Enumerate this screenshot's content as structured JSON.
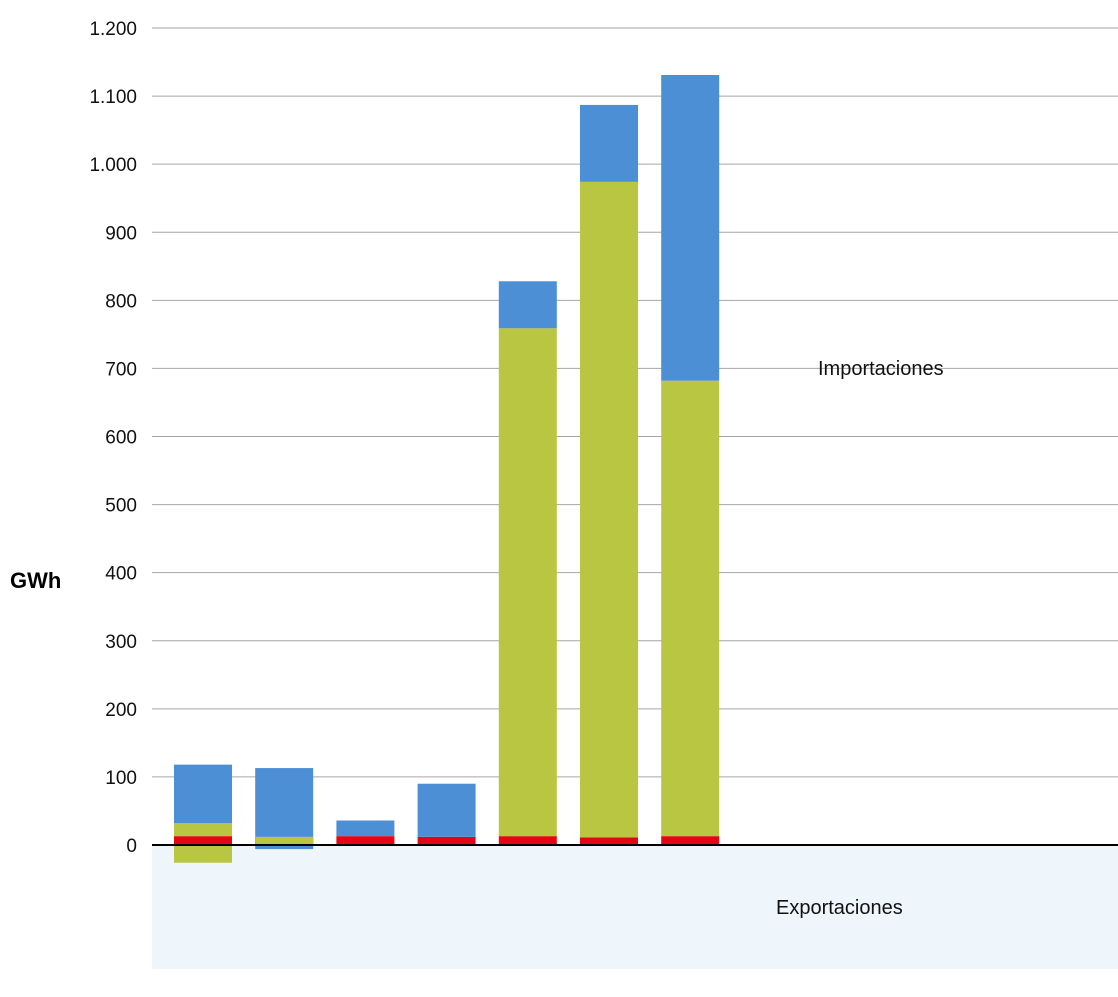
{
  "chart_data": {
    "type": "bar",
    "stacked": true,
    "categories": [
      "",
      "",
      "",
      "",
      "",
      "",
      ""
    ],
    "ylabel": "GWh",
    "ylim": [
      -60,
      1200
    ],
    "yticks": [
      0,
      100,
      200,
      300,
      400,
      500,
      600,
      700,
      800,
      900,
      1000,
      1100,
      1200
    ],
    "ytick_labels": [
      "0",
      "100",
      "200",
      "300",
      "400",
      "500",
      "600",
      "700",
      "800",
      "900",
      "1.000",
      "1.100",
      "1.200"
    ],
    "grid": true,
    "annotations": {
      "imports": "Importaciones",
      "exports": "Exportaciones"
    },
    "series": [
      {
        "color": "#e30613",
        "values": [
          13,
          12,
          13,
          12,
          13,
          11,
          13
        ]
      },
      {
        "color": "#b9c642",
        "values": [
          19,
          -12,
          0,
          0,
          746,
          963,
          669
        ]
      },
      {
        "color": "#4d8fd4",
        "values": [
          86,
          101,
          23,
          78,
          69,
          113,
          449
        ]
      }
    ],
    "negatives": [
      {
        "color": "#b9c642",
        "values": [
          -26,
          0,
          0,
          0,
          0,
          0,
          0
        ]
      },
      {
        "color": "#4d8fd4",
        "values": [
          0,
          -6,
          0,
          0,
          0,
          0,
          0
        ]
      }
    ],
    "export_region_color": "#eef6fc",
    "axis_color": "#000000",
    "grid_color": "#a6a6a6"
  }
}
